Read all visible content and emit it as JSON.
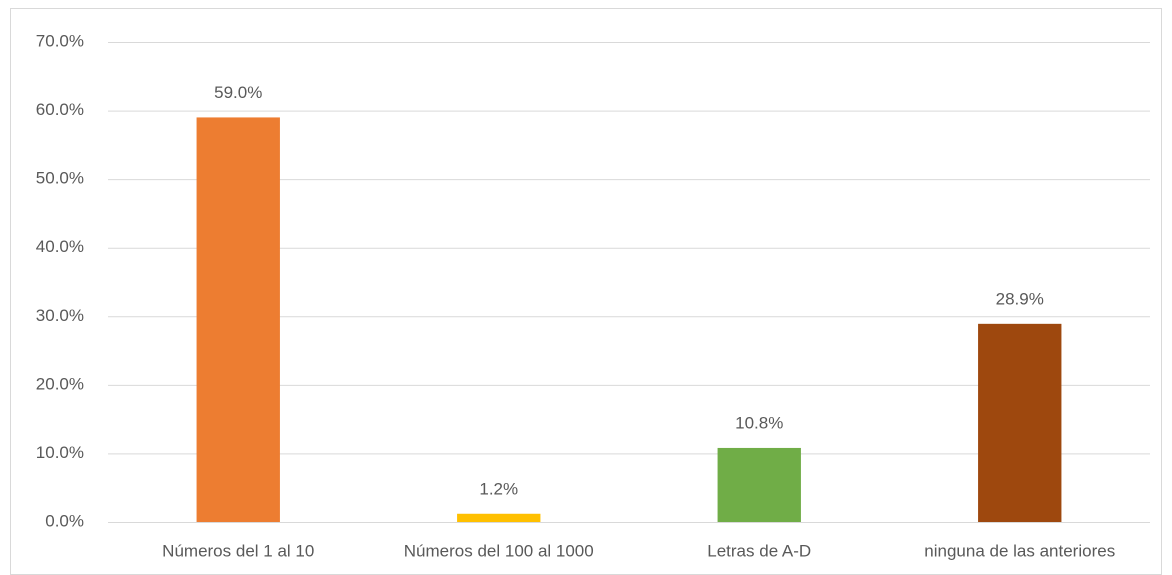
{
  "chart_data": {
    "type": "bar",
    "categories": [
      "Números del 1 al 10",
      "Números del 100 al 1000",
      "Letras de A-D",
      "ninguna de las anteriores"
    ],
    "values": [
      59,
      1.2,
      10.8,
      28.9
    ],
    "value_labels": [
      "59.0%",
      "1.2%",
      "10.8%",
      "28.9%"
    ],
    "colors": [
      "#ED7D31",
      "#FFC000",
      "#70AD47",
      "#9E480E"
    ],
    "ylim": [
      0,
      70
    ],
    "yticks": [
      {
        "value": 0,
        "label": "0.0%"
      },
      {
        "value": 10,
        "label": "10.0%"
      },
      {
        "value": 20,
        "label": "20.0%"
      },
      {
        "value": 30,
        "label": "30.0%"
      },
      {
        "value": 40,
        "label": "40.0%"
      },
      {
        "value": 50,
        "label": "50.0%"
      },
      {
        "value": 60,
        "label": "60.0%"
      },
      {
        "value": 70,
        "label": "70.0%"
      }
    ],
    "grid": true
  }
}
